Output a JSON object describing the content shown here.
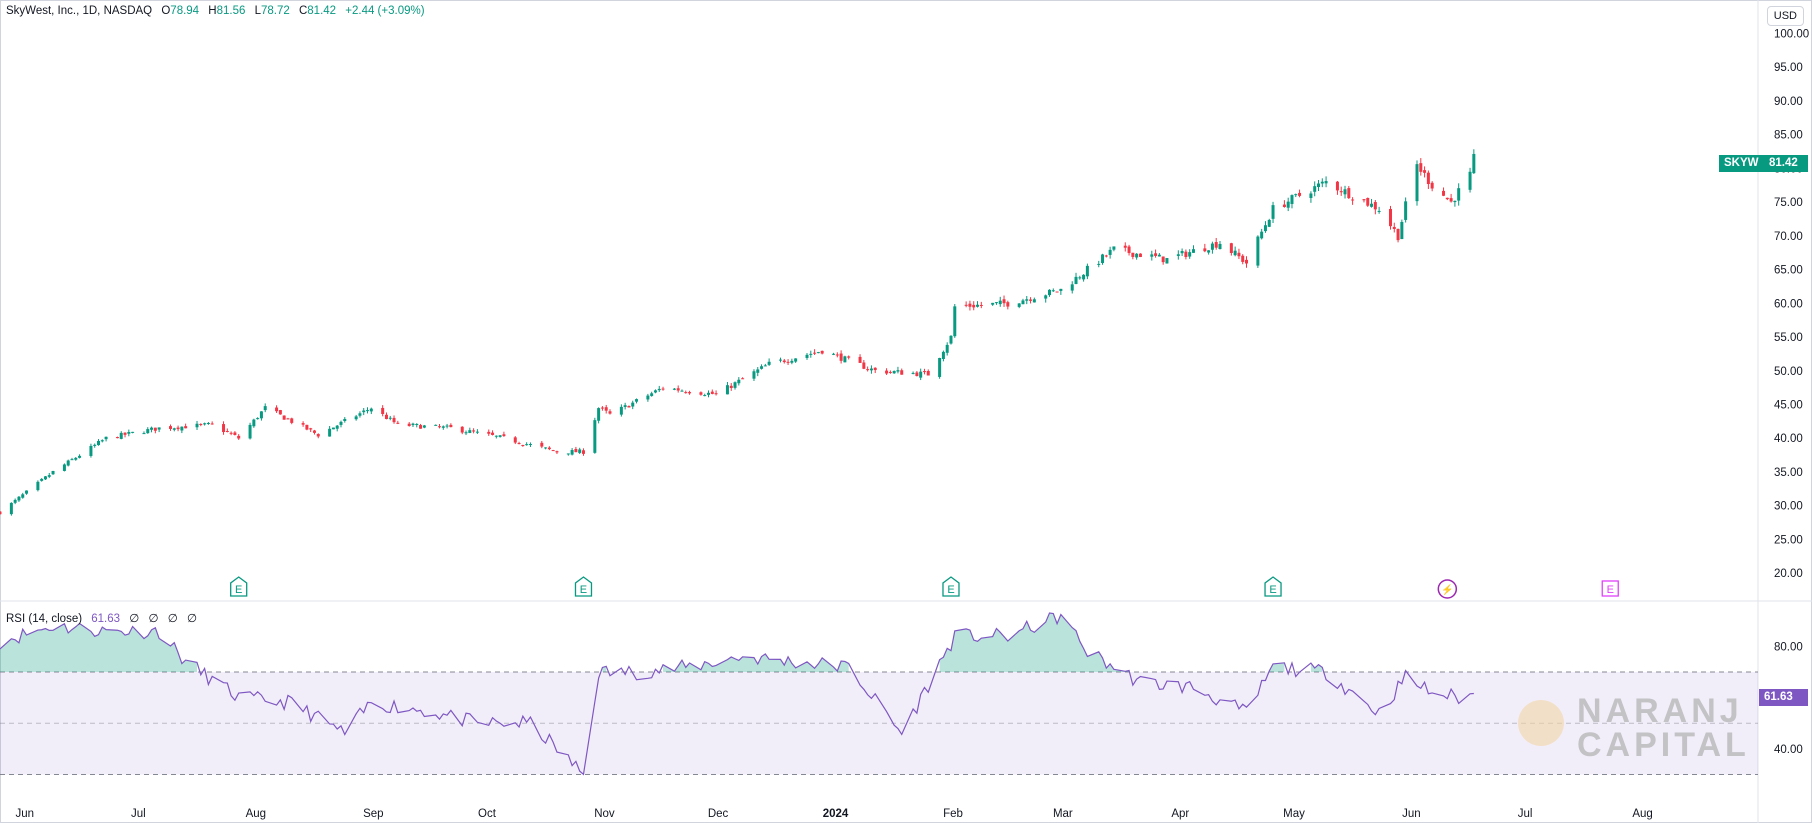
{
  "header": {
    "symbol_line": "SkyWest, Inc., 1D, NASDAQ",
    "open_label": "O",
    "open": "78.94",
    "high_label": "H",
    "high": "81.56",
    "low_label": "L",
    "low": "78.72",
    "close_label": "C",
    "close": "81.42",
    "change": "+2.44 (+3.09%)"
  },
  "currency": "USD",
  "price_tag": {
    "ticker": "SKYW",
    "value": "81.42"
  },
  "rsi": {
    "label": "RSI (14, close)",
    "value": "61.63",
    "placeholders": [
      "∅",
      "∅",
      "∅",
      "∅"
    ],
    "tag": "61.63"
  },
  "watermark": {
    "line1": "NARANJ",
    "line2": "CAPITAL"
  },
  "colors": {
    "up": "#089981",
    "down": "#f23645",
    "rsi": "#7e57c2",
    "earnings": "#089981",
    "dividend": "#9c27b0",
    "future_earnings": "#e040fb"
  },
  "chart_data": [
    {
      "type": "candlestick",
      "title": "SkyWest, Inc., 1D, NASDAQ",
      "x_ticks": [
        "Jun",
        "Jul",
        "Aug",
        "Sep",
        "Oct",
        "Nov",
        "Dec",
        "2024",
        "Feb",
        "Mar",
        "Apr",
        "May",
        "Jun",
        "Jul",
        "Aug"
      ],
      "y_ticks": [
        "100.00",
        "95.00",
        "90.00",
        "85.00",
        "80.00",
        "75.00",
        "70.00",
        "65.00",
        "60.00",
        "55.00",
        "50.00",
        "45.00",
        "40.00",
        "35.00",
        "30.00",
        "25.00",
        "20.00"
      ],
      "ylim": [
        17.5,
        102
      ],
      "x_range": [
        "2023-05-26",
        "2024-09-01"
      ],
      "series": [
        {
          "x": [
            "2023-05-26",
            "2023-06-09",
            "2023-06-23",
            "2023-07-07",
            "2023-07-21",
            "2023-07-28",
            "2023-08-04",
            "2023-08-18",
            "2023-09-01",
            "2023-09-08",
            "2023-09-22",
            "2023-10-06",
            "2023-10-20",
            "2023-10-27",
            "2023-10-31",
            "2023-11-03",
            "2023-11-17",
            "2023-12-01",
            "2023-12-15",
            "2023-12-29",
            "2024-01-12",
            "2024-01-26",
            "2024-02-01",
            "2024-02-02",
            "2024-02-16",
            "2024-03-01",
            "2024-03-15",
            "2024-03-29",
            "2024-04-12",
            "2024-04-19",
            "2024-04-26",
            "2024-05-10",
            "2024-05-24",
            "2024-05-29",
            "2024-05-31",
            "2024-06-03",
            "2024-06-07",
            "2024-06-12",
            "2024-06-17",
            "2024-06-18"
          ],
          "close": [
            29.0,
            35.0,
            40.0,
            41.5,
            42.0,
            40.0,
            44.5,
            40.5,
            44.5,
            42.0,
            41.5,
            40.0,
            38.0,
            38.0,
            44.5,
            43.5,
            47.5,
            46.5,
            51.0,
            53.0,
            50.0,
            49.5,
            55.0,
            59.5,
            60.0,
            62.0,
            68.0,
            66.5,
            69.0,
            66.0,
            74.0,
            78.0,
            74.0,
            70.0,
            74.5,
            80.5,
            77.5,
            75.0,
            79.0,
            81.42
          ]
        }
      ]
    },
    {
      "type": "line",
      "title": "RSI (14, close)",
      "ylim": [
        22,
        95
      ],
      "y_ticks": [
        "80.00",
        "40.00"
      ],
      "bands": {
        "upper": 70,
        "middle": 50,
        "lower": 30
      },
      "series": [
        {
          "name": "RSI (14, close)",
          "x": [
            "2023-05-26",
            "2023-06-09",
            "2023-06-23",
            "2023-07-07",
            "2023-07-14",
            "2023-07-28",
            "2023-08-11",
            "2023-08-25",
            "2023-09-01",
            "2023-09-15",
            "2023-09-29",
            "2023-10-13",
            "2023-10-27",
            "2023-10-31",
            "2023-11-10",
            "2023-11-24",
            "2023-12-08",
            "2023-12-22",
            "2024-01-05",
            "2024-01-19",
            "2024-02-02",
            "2024-02-16",
            "2024-03-01",
            "2024-03-08",
            "2024-03-22",
            "2024-04-05",
            "2024-04-19",
            "2024-04-26",
            "2024-05-10",
            "2024-05-24",
            "2024-05-31",
            "2024-06-07",
            "2024-06-14",
            "2024-06-18"
          ],
          "values": [
            82,
            88,
            86,
            86,
            74,
            60,
            58,
            46,
            58,
            55,
            50,
            50,
            30,
            70,
            70,
            72,
            76,
            74,
            72,
            46,
            84,
            84,
            92,
            78,
            66,
            64,
            54,
            72,
            70,
            54,
            68,
            62,
            60,
            61.63
          ]
        }
      ]
    }
  ]
}
